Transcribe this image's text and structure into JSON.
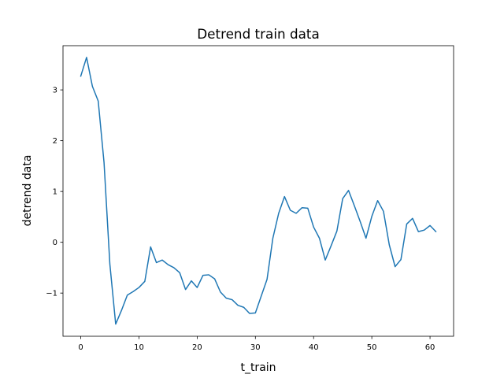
{
  "chart_data": {
    "type": "line",
    "title": "Detrend train data",
    "xlabel": "t_train",
    "ylabel": "detrend data",
    "xlim": [
      -3.05,
      64.05
    ],
    "ylim": [
      -1.85,
      3.87
    ],
    "xticks": [
      0,
      10,
      20,
      30,
      40,
      50,
      60
    ],
    "yticks": [
      -1,
      0,
      1,
      2,
      3
    ],
    "ytick_labels": [
      "−1",
      "0",
      "1",
      "2",
      "3"
    ],
    "grid": false,
    "legend": "none",
    "series": [
      {
        "color": "#1f77b4",
        "x": [
          0,
          1,
          2,
          3,
          4,
          5,
          6,
          7,
          8,
          9,
          10,
          11,
          12,
          13,
          14,
          15,
          16,
          17,
          18,
          19,
          20,
          21,
          22,
          23,
          24,
          25,
          26,
          27,
          28,
          29,
          30,
          31,
          32,
          33,
          34,
          35,
          36,
          37,
          38,
          39,
          40,
          41,
          42,
          43,
          44,
          45,
          46,
          47,
          48,
          49,
          50,
          51,
          52,
          53,
          54,
          55,
          56,
          57,
          58,
          59,
          60,
          61
        ],
        "y": [
          3.27,
          3.64,
          3.07,
          2.78,
          1.57,
          -0.43,
          -1.61,
          -1.34,
          -1.04,
          -0.97,
          -0.89,
          -0.77,
          -0.09,
          -0.4,
          -0.35,
          -0.44,
          -0.5,
          -0.6,
          -0.93,
          -0.76,
          -0.89,
          -0.65,
          -0.64,
          -0.72,
          -0.98,
          -1.1,
          -1.13,
          -1.24,
          -1.28,
          -1.4,
          -1.39,
          -1.06,
          -0.73,
          0.08,
          0.57,
          0.9,
          0.63,
          0.57,
          0.68,
          0.67,
          0.3,
          0.08,
          -0.35,
          -0.07,
          0.22,
          0.86,
          1.02,
          0.72,
          0.41,
          0.08,
          0.51,
          0.82,
          0.61,
          -0.05,
          -0.48,
          -0.34,
          0.36,
          0.47,
          0.21,
          0.24,
          0.33,
          0.21
        ]
      }
    ]
  }
}
